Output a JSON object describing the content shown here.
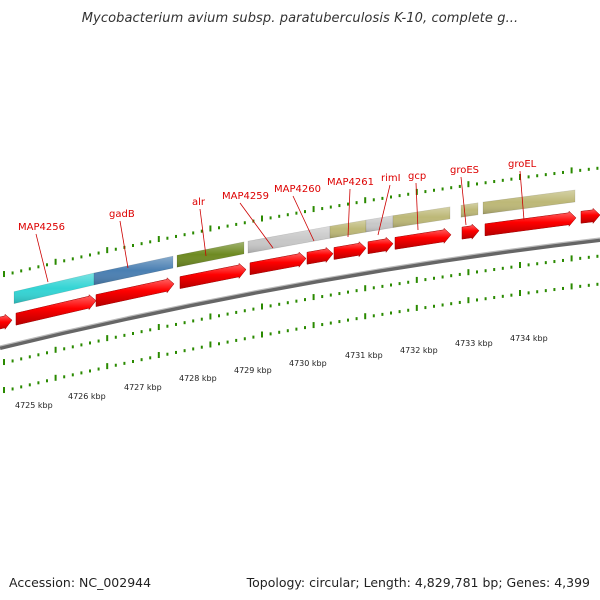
{
  "title": "Mycobacterium avium subsp. paratuberculosis K-10, complete g...",
  "footer": {
    "accession": "Accession: NC_002944",
    "summary": "Topology: circular; Length: 4,829,781 bp; Genes: 4,399"
  },
  "colors": {
    "cds": "#ff0000",
    "label": "#dd0000",
    "tick": "#2a8a00",
    "backbone": "#888888"
  },
  "genes": [
    {
      "label": "MAP4256",
      "color": "#33d4d4"
    },
    {
      "label": "gadB",
      "color": "#4a7fb2"
    },
    {
      "label": "alr",
      "color": "#6e8a22"
    },
    {
      "label": "MAP4259",
      "color": "#c8c8c8"
    },
    {
      "label": "MAP4260",
      "color": "#bdb877"
    },
    {
      "label": "MAP4261",
      "color": "#c8c8c8"
    },
    {
      "label": "rimI",
      "color": "#bdb877"
    },
    {
      "label": "gcp",
      "color": "#bdb877"
    },
    {
      "label": "groES",
      "color": "#bdb877"
    },
    {
      "label": "groEL",
      "color": "#bdb877"
    }
  ],
  "kbp_labels": [
    "4725 kbp",
    "4726 kbp",
    "4727 kbp",
    "4728 kbp",
    "4729 kbp",
    "4730 kbp",
    "4731 kbp",
    "4732 kbp",
    "4733 kbp",
    "4734 kbp"
  ]
}
